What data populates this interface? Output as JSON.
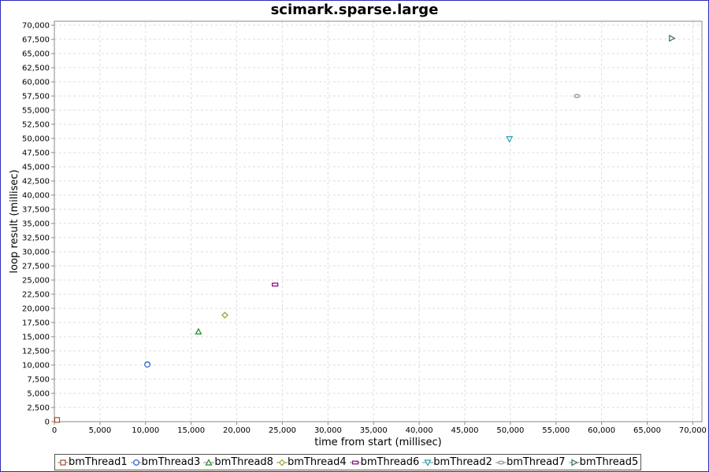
{
  "chart_data": {
    "type": "scatter",
    "title": "scimark.sparse.large",
    "xlabel": "time from start (millisec)",
    "ylabel": "loop result (millisec)",
    "xlim": [
      0,
      71000
    ],
    "ylim": [
      0,
      70700
    ],
    "grid": true,
    "legend_position": "bottom",
    "x_ticks": [
      {
        "value": 0,
        "label": "0"
      },
      {
        "value": 5000,
        "label": "5,000"
      },
      {
        "value": 10000,
        "label": "10,000"
      },
      {
        "value": 15000,
        "label": "15,000"
      },
      {
        "value": 20000,
        "label": "20,000"
      },
      {
        "value": 25000,
        "label": "25,000"
      },
      {
        "value": 30000,
        "label": "30,000"
      },
      {
        "value": 35000,
        "label": "35,000"
      },
      {
        "value": 40000,
        "label": "40,000"
      },
      {
        "value": 45000,
        "label": "45,000"
      },
      {
        "value": 50000,
        "label": "50,000"
      },
      {
        "value": 55000,
        "label": "55,000"
      },
      {
        "value": 60000,
        "label": "60,000"
      },
      {
        "value": 65000,
        "label": "65,000"
      },
      {
        "value": 70000,
        "label": "70,000"
      }
    ],
    "y_ticks": [
      {
        "value": 0,
        "label": "0"
      },
      {
        "value": 2500,
        "label": "2,500"
      },
      {
        "value": 5000,
        "label": "5,000"
      },
      {
        "value": 7500,
        "label": "7,500"
      },
      {
        "value": 10000,
        "label": "10,000"
      },
      {
        "value": 12500,
        "label": "12,500"
      },
      {
        "value": 15000,
        "label": "15,000"
      },
      {
        "value": 17500,
        "label": "17,500"
      },
      {
        "value": 20000,
        "label": "20,000"
      },
      {
        "value": 22500,
        "label": "22,500"
      },
      {
        "value": 25000,
        "label": "25,000"
      },
      {
        "value": 27500,
        "label": "27,500"
      },
      {
        "value": 30000,
        "label": "30,000"
      },
      {
        "value": 32500,
        "label": "32,500"
      },
      {
        "value": 35000,
        "label": "35,000"
      },
      {
        "value": 37500,
        "label": "37,500"
      },
      {
        "value": 40000,
        "label": "40,000"
      },
      {
        "value": 42500,
        "label": "42,500"
      },
      {
        "value": 45000,
        "label": "45,000"
      },
      {
        "value": 47500,
        "label": "47,500"
      },
      {
        "value": 50000,
        "label": "50,000"
      },
      {
        "value": 52500,
        "label": "52,500"
      },
      {
        "value": 55000,
        "label": "55,000"
      },
      {
        "value": 57500,
        "label": "57,500"
      },
      {
        "value": 60000,
        "label": "60,000"
      },
      {
        "value": 62500,
        "label": "62,500"
      },
      {
        "value": 65000,
        "label": "65,000"
      },
      {
        "value": 67500,
        "label": "67,500"
      },
      {
        "value": 70000,
        "label": "70,000"
      }
    ],
    "series": [
      {
        "name": "bmThread1",
        "marker": "square",
        "color": "#a0522d",
        "points": [
          [
            300,
            300
          ]
        ]
      },
      {
        "name": "bmThread3",
        "marker": "circle",
        "color": "#2255cc",
        "points": [
          [
            10200,
            10100
          ]
        ]
      },
      {
        "name": "bmThread8",
        "marker": "triangle-up",
        "color": "#228b22",
        "points": [
          [
            15800,
            15900
          ]
        ]
      },
      {
        "name": "bmThread4",
        "marker": "diamond",
        "color": "#9aa020",
        "points": [
          [
            18700,
            18800
          ]
        ]
      },
      {
        "name": "bmThread6",
        "marker": "rect-wide",
        "color": "#800080",
        "points": [
          [
            24200,
            24200
          ]
        ]
      },
      {
        "name": "bmThread2",
        "marker": "triangle-down",
        "color": "#20a0b0",
        "points": [
          [
            49900,
            49900
          ]
        ]
      },
      {
        "name": "bmThread7",
        "marker": "ellipse",
        "color": "#888888",
        "points": [
          [
            57300,
            57500
          ]
        ]
      },
      {
        "name": "bmThread5",
        "marker": "triangle-right",
        "color": "#336666",
        "points": [
          [
            67700,
            67700
          ]
        ]
      }
    ]
  }
}
